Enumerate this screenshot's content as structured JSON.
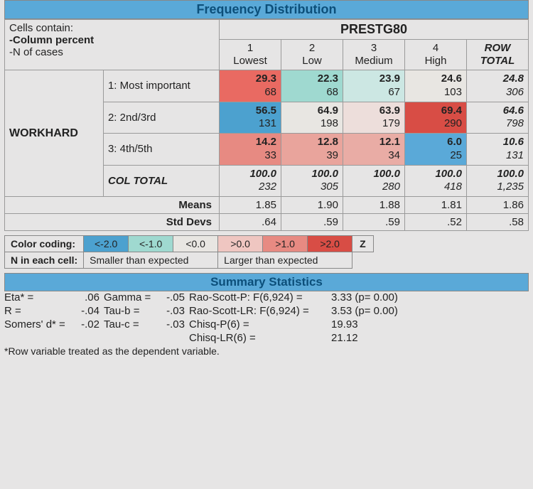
{
  "titles": {
    "freq": "Frequency Distribution",
    "cells": "Cells contain:",
    "colpct": "-Column percent",
    "ncases": "-N of cases",
    "colvar": "PRESTG80",
    "rowvar": "WORKHARD",
    "rowtotal_hdr_a": "ROW",
    "rowtotal_hdr_b": "TOTAL",
    "coltotal": "COL TOTAL",
    "means": "Means",
    "stddevs": "Std Devs",
    "summary": "Summary Statistics",
    "footnote": "*Row variable treated as the dependent variable."
  },
  "cols": [
    {
      "num": "1",
      "lab": "Lowest"
    },
    {
      "num": "2",
      "lab": "Low"
    },
    {
      "num": "3",
      "lab": "Medium"
    },
    {
      "num": "4",
      "lab": "High"
    }
  ],
  "rows": [
    {
      "lab": "1: Most important",
      "cells": [
        {
          "pct": "29.3",
          "n": "68",
          "bg": "#e96a62"
        },
        {
          "pct": "22.3",
          "n": "68",
          "bg": "#9fd9d0"
        },
        {
          "pct": "23.9",
          "n": "67",
          "bg": "#cce7e3"
        },
        {
          "pct": "24.6",
          "n": "103",
          "bg": "#e8e6e2"
        }
      ],
      "tot": {
        "pct": "24.8",
        "n": "306"
      }
    },
    {
      "lab": "2: 2nd/3rd",
      "cells": [
        {
          "pct": "56.5",
          "n": "131",
          "bg": "#4ca1cf"
        },
        {
          "pct": "64.9",
          "n": "198",
          "bg": "#e8e6e2"
        },
        {
          "pct": "63.9",
          "n": "179",
          "bg": "#eddedb"
        },
        {
          "pct": "69.4",
          "n": "290",
          "bg": "#d84d45"
        }
      ],
      "tot": {
        "pct": "64.6",
        "n": "798"
      }
    },
    {
      "lab": "3: 4th/5th",
      "cells": [
        {
          "pct": "14.2",
          "n": "33",
          "bg": "#e78a82"
        },
        {
          "pct": "12.8",
          "n": "39",
          "bg": "#e9a49c"
        },
        {
          "pct": "12.1",
          "n": "34",
          "bg": "#e9aca5"
        },
        {
          "pct": "6.0",
          "n": "25",
          "bg": "#5aa9d8"
        }
      ],
      "tot": {
        "pct": "10.6",
        "n": "131"
      }
    }
  ],
  "coltotals": {
    "cells": [
      {
        "pct": "100.0",
        "n": "232"
      },
      {
        "pct": "100.0",
        "n": "305"
      },
      {
        "pct": "100.0",
        "n": "280"
      },
      {
        "pct": "100.0",
        "n": "418"
      }
    ],
    "tot": {
      "pct": "100.0",
      "n": "1,235"
    }
  },
  "stat_means": [
    "1.85",
    "1.90",
    "1.88",
    "1.81",
    "1.86"
  ],
  "stat_sd": [
    ".64",
    ".59",
    ".59",
    ".52",
    ".58"
  ],
  "legend": {
    "label": "Color coding:",
    "items": [
      {
        "txt": "<-2.0",
        "bg": "#4ca1cf"
      },
      {
        "txt": "<-1.0",
        "bg": "#9fd9d0"
      },
      {
        "txt": "<0.0",
        "bg": "#e8e6e2"
      },
      {
        "txt": ">0.0",
        "bg": "#efc6c1"
      },
      {
        "txt": ">1.0",
        "bg": "#e78a82"
      },
      {
        "txt": ">2.0",
        "bg": "#d84d45"
      }
    ],
    "z_label": "Z",
    "row2_label": "N in each cell:",
    "row2_a": "Smaller than expected",
    "row2_b": "Larger than expected"
  },
  "summary": {
    "r1": {
      "a": "Eta* =",
      "b": ".06",
      "c": "Gamma =",
      "d": "-.05",
      "e": "Rao-Scott-P: F(6,924) =",
      "f": "3.33 (p= 0.00)"
    },
    "r2": {
      "a": "R =",
      "b": "-.04",
      "c": "Tau-b =",
      "d": "-.03",
      "e": "Rao-Scott-LR: F(6,924) =",
      "f": "3.53 (p= 0.00)"
    },
    "r3": {
      "a": "Somers' d* =",
      "b": "-.02",
      "c": "Tau-c =",
      "d": "-.03",
      "e": "Chisq-P(6) =",
      "f": "19.93"
    },
    "r4": {
      "a": "",
      "b": "",
      "c": "",
      "d": "",
      "e": "Chisq-LR(6) =",
      "f": "21.12"
    }
  },
  "colors": {
    "band_bg": "#5aa9d8",
    "band_text": "#0c4f7a"
  }
}
